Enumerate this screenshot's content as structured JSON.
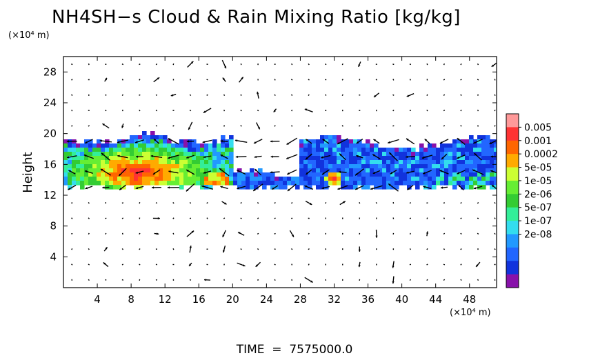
{
  "chart_data": {
    "type": "heatmap",
    "title": "NH4SH−s Cloud & Rain Mixing Ratio [kg/kg]",
    "xlabel": "",
    "ylabel": "Height",
    "x_unit_label": "(×10⁴ m)",
    "y_unit_label": "(×10⁴ m)",
    "xlim": [
      0,
      51.2
    ],
    "ylim": [
      0,
      30
    ],
    "x_ticks": [
      4,
      8,
      12,
      16,
      20,
      24,
      28,
      32,
      36,
      40,
      44,
      48
    ],
    "y_ticks": [
      4,
      8,
      12,
      16,
      20,
      24,
      28
    ],
    "colorbar": {
      "labels": [
        "0.005",
        "0.001",
        "0.0002",
        "5e-05",
        "1e-05",
        "2e-06",
        "5e-07",
        "1e-07",
        "2e-08"
      ],
      "colors": [
        "#ff9999",
        "#ff3333",
        "#ff6600",
        "#ffaa00",
        "#ccff33",
        "#66ee33",
        "#33cc33",
        "#33ee99",
        "#33ddee",
        "#2299ff",
        "#2266ff",
        "#1133dd",
        "#8811aa"
      ]
    },
    "field_regions": [
      {
        "x": [
          0,
          20
        ],
        "y": [
          13.2,
          19.5
        ],
        "level": "1e-05"
      },
      {
        "x": [
          5,
          17
        ],
        "y": [
          13.5,
          17.5
        ],
        "level": "0.0002"
      },
      {
        "x": [
          7,
          11
        ],
        "y": [
          13.8,
          16.5
        ],
        "level": "0.005"
      },
      {
        "x": [
          20,
          28
        ],
        "y": [
          13.2,
          15.5
        ],
        "level": "1e-07"
      },
      {
        "x": [
          28,
          51.2
        ],
        "y": [
          13.0,
          19.0
        ],
        "level": "1e-07"
      },
      {
        "x": [
          31,
          33
        ],
        "y": [
          13.5,
          15.0
        ],
        "level": "0.001"
      }
    ],
    "vector_field": "wind arrows",
    "time_label": "TIME  =  7575000.0"
  }
}
